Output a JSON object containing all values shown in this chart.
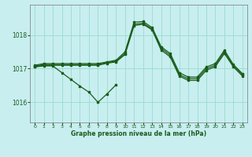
{
  "title": "Graphe pression niveau de la mer (hPa)",
  "bg_color": "#c8eef0",
  "grid_color": "#99ddcc",
  "line_color": "#1a5c1a",
  "xlim": [
    -0.5,
    23.5
  ],
  "ylim": [
    1015.4,
    1018.9
  ],
  "yticks": [
    1016,
    1017,
    1018
  ],
  "xticks": [
    0,
    1,
    2,
    3,
    4,
    5,
    6,
    7,
    8,
    9,
    10,
    11,
    12,
    13,
    14,
    15,
    16,
    17,
    18,
    19,
    20,
    21,
    22,
    23
  ],
  "line_main": [
    1017.1,
    1017.15,
    1017.15,
    1017.15,
    1017.15,
    1017.15,
    1017.15,
    1017.15,
    1017.2,
    1017.25,
    1017.5,
    1018.38,
    1018.4,
    1018.22,
    1017.65,
    1017.45,
    1016.88,
    1016.75,
    1016.75,
    1017.05,
    1017.15,
    1017.55,
    1017.12,
    1016.85
  ],
  "line_mid1": [
    1017.08,
    1017.12,
    1017.12,
    1017.12,
    1017.12,
    1017.12,
    1017.12,
    1017.12,
    1017.18,
    1017.22,
    1017.45,
    1018.32,
    1018.35,
    1018.18,
    1017.6,
    1017.4,
    1016.82,
    1016.7,
    1016.7,
    1017.0,
    1017.1,
    1017.5,
    1017.08,
    1016.82
  ],
  "line_mid2": [
    1017.06,
    1017.1,
    1017.1,
    1017.1,
    1017.1,
    1017.1,
    1017.1,
    1017.1,
    1017.16,
    1017.2,
    1017.42,
    1018.28,
    1018.32,
    1018.15,
    1017.55,
    1017.35,
    1016.78,
    1016.65,
    1016.65,
    1016.95,
    1017.06,
    1017.45,
    1017.05,
    1016.78
  ],
  "line_low": [
    1017.05,
    1017.08,
    1017.08,
    1016.88,
    1016.68,
    1016.48,
    1016.3,
    1016.0,
    1016.25,
    1016.52,
    null,
    null,
    null,
    null,
    null,
    null,
    null,
    null,
    null,
    null,
    null,
    null,
    null,
    null
  ],
  "line_flat": [
    null,
    null,
    null,
    null,
    null,
    null,
    null,
    null,
    null,
    null,
    1017.42,
    1018.28,
    1018.32,
    1018.15,
    1017.55,
    1017.35,
    1016.78,
    1016.65,
    1016.65,
    1016.95,
    1017.06,
    1017.45,
    1017.05,
    1016.78
  ]
}
